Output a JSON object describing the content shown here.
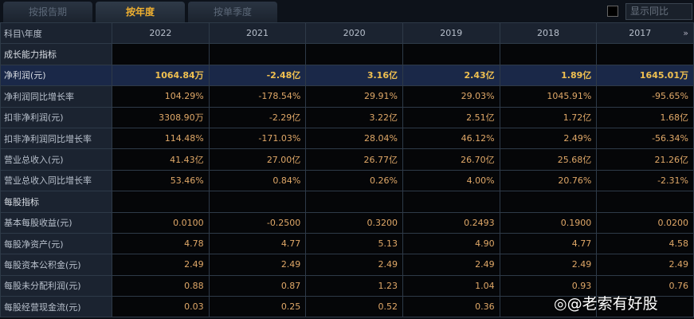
{
  "tabs": [
    {
      "label": "按报告期"
    },
    {
      "label": "按年度"
    },
    {
      "label": "按单季度"
    }
  ],
  "show_yoy_label": "显示同比",
  "header": {
    "label": "科目\\年度",
    "years": [
      "2022",
      "2021",
      "2020",
      "2019",
      "2018",
      "2017"
    ],
    "more_icon": "»"
  },
  "rows": [
    {
      "type": "section",
      "label": "成长能力指标",
      "values": [
        "",
        "",
        "",
        "",
        "",
        ""
      ]
    },
    {
      "type": "highlight",
      "label": "净利润(元)",
      "values": [
        "1064.84万",
        "-2.48亿",
        "3.16亿",
        "2.43亿",
        "1.89亿",
        "1645.01万"
      ]
    },
    {
      "type": "data",
      "label": "净利润同比增长率",
      "values": [
        "104.29%",
        "-178.54%",
        "29.91%",
        "29.03%",
        "1045.91%",
        "-95.65%"
      ]
    },
    {
      "type": "data",
      "label": "扣非净利润(元)",
      "values": [
        "3308.90万",
        "-2.29亿",
        "3.22亿",
        "2.51亿",
        "1.72亿",
        "1.68亿"
      ]
    },
    {
      "type": "data",
      "label": "扣非净利润同比增长率",
      "values": [
        "114.48%",
        "-171.03%",
        "28.04%",
        "46.12%",
        "2.49%",
        "-56.34%"
      ]
    },
    {
      "type": "data",
      "label": "营业总收入(元)",
      "values": [
        "41.43亿",
        "27.00亿",
        "26.77亿",
        "26.70亿",
        "25.68亿",
        "21.26亿"
      ]
    },
    {
      "type": "data",
      "label": "营业总收入同比增长率",
      "values": [
        "53.46%",
        "0.84%",
        "0.26%",
        "4.00%",
        "20.76%",
        "-2.31%"
      ]
    },
    {
      "type": "section",
      "label": "每股指标",
      "values": [
        "",
        "",
        "",
        "",
        "",
        ""
      ]
    },
    {
      "type": "data",
      "label": "基本每股收益(元)",
      "values": [
        "0.0100",
        "-0.2500",
        "0.3200",
        "0.2493",
        "0.1900",
        "0.0200"
      ]
    },
    {
      "type": "data",
      "label": "每股净资产(元)",
      "values": [
        "4.78",
        "4.77",
        "5.13",
        "4.90",
        "4.77",
        "4.58"
      ]
    },
    {
      "type": "data",
      "label": "每股资本公积金(元)",
      "values": [
        "2.49",
        "2.49",
        "2.49",
        "2.49",
        "2.49",
        "2.49"
      ]
    },
    {
      "type": "data",
      "label": "每股未分配利润(元)",
      "values": [
        "0.88",
        "0.87",
        "1.23",
        "1.04",
        "0.93",
        "0.76"
      ]
    },
    {
      "type": "data",
      "label": "每股经营现金流(元)",
      "values": [
        "0.03",
        "0.25",
        "0.52",
        "0.36",
        "",
        ""
      ]
    }
  ],
  "watermark": "@老索有好股"
}
